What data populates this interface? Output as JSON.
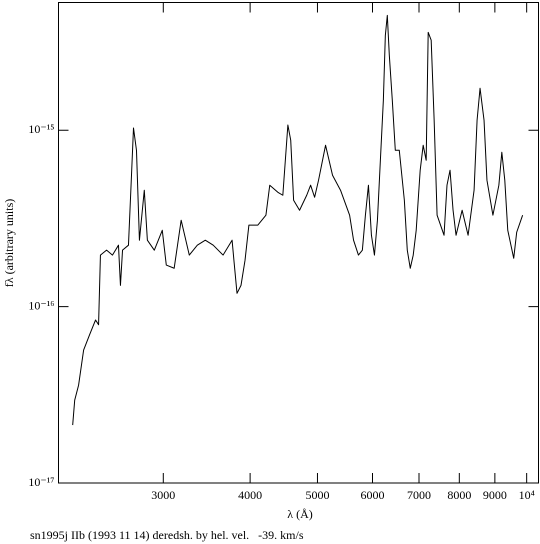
{
  "chart_data": {
    "type": "line",
    "log_x": true,
    "log_y": true,
    "color": "#000000",
    "xlabel": "λ (Å)",
    "ylabel": "fλ (arbitrary units)",
    "caption": "sn1995j IIb (1993 11 14) deredsh. by hel. vel.   -39. km/s",
    "xlim": [
      2120,
      10400
    ],
    "ylim": [
      1e-17,
      5.3e-15
    ],
    "xticks": [
      3000,
      4000,
      5000,
      6000,
      7000,
      8000,
      9000,
      {
        "value": 10000,
        "label": "10⁴"
      }
    ],
    "yticks": [
      {
        "value": 1e-17,
        "label": "10⁻¹⁷"
      },
      {
        "value": 1e-16,
        "label": "10⁻¹⁶"
      },
      {
        "value": 1e-15,
        "label": "10⁻¹⁵"
      }
    ],
    "x": [
      2222,
      2237,
      2266,
      2304,
      2349,
      2397,
      2421,
      2436,
      2486,
      2535,
      2586,
      2603,
      2621,
      2673,
      2700,
      2718,
      2745,
      2772,
      2817,
      2846,
      2912,
      2990,
      3030,
      3110,
      3183,
      3270,
      3358,
      3448,
      3540,
      3657,
      3768,
      3793,
      3830,
      3881,
      3933,
      3984,
      4104,
      4215,
      4269,
      4385,
      4458,
      4533,
      4576,
      4620,
      4712,
      4825,
      4888,
      4953,
      5018,
      5136,
      5256,
      5397,
      5562,
      5635,
      5727,
      5802,
      5861,
      5920,
      5979,
      6039,
      6099,
      6159,
      6220,
      6261,
      6302,
      6344,
      6407,
      6471,
      6557,
      6668,
      6733,
      6800,
      6867,
      6935,
      7027,
      7097,
      7168,
      7216,
      7288,
      7360,
      7432,
      7605,
      7680,
      7758,
      7836,
      7914,
      8075,
      8236,
      8401,
      8485,
      8569,
      8683,
      8767,
      8942,
      9120,
      9210,
      9301,
      9393,
      9580,
      9675,
      9867
    ],
    "values": [
      2.13e-17,
      2.95e-17,
      3.59e-17,
      5.67e-17,
      6.9e-17,
      8.4e-17,
      7.9e-17,
      1.96e-16,
      2.09e-16,
      1.96e-16,
      2.23e-16,
      1.32e-16,
      2.09e-16,
      2.23e-16,
      5.56e-16,
      1.03e-15,
      7.7e-16,
      2.38e-16,
      4.57e-16,
      2.38e-16,
      2.09e-16,
      2.71e-16,
      1.72e-16,
      1.65e-16,
      3.09e-16,
      1.96e-16,
      2.23e-16,
      2.38e-16,
      2.23e-16,
      1.96e-16,
      2.38e-16,
      1.79e-16,
      1.19e-16,
      1.32e-16,
      1.83e-16,
      2.9e-16,
      2.9e-16,
      3.3e-16,
      4.88e-16,
      4.45e-16,
      4.28e-16,
      1.07e-15,
      8.78e-16,
      4.01e-16,
      3.52e-16,
      4.28e-16,
      4.88e-16,
      4.17e-16,
      5.21e-16,
      8.22e-16,
      5.56e-16,
      4.57e-16,
      3.3e-16,
      2.38e-16,
      1.96e-16,
      2.09e-16,
      3.3e-16,
      4.88e-16,
      2.54e-16,
      1.96e-16,
      3.09e-16,
      6.76e-16,
      1.48e-15,
      3.45e-15,
      4.48e-15,
      2.66e-15,
      1.48e-15,
      7.7e-16,
      7.7e-16,
      4.01e-16,
      2.09e-16,
      1.65e-16,
      1.96e-16,
      2.71e-16,
      5.93e-16,
      8.22e-16,
      6.76e-16,
      3.59e-15,
      3.24e-15,
      1.14e-15,
      3.3e-16,
      2.54e-16,
      4.88e-16,
      5.93e-16,
      3.52e-16,
      2.54e-16,
      3.52e-16,
      2.54e-16,
      4.57e-16,
      1.14e-15,
      1.73e-15,
      1.14e-15,
      5.21e-16,
      3.3e-16,
      4.88e-16,
      7.5e-16,
      5.21e-16,
      2.71e-16,
      1.88e-16,
      2.64e-16,
      3.3e-16
    ]
  }
}
